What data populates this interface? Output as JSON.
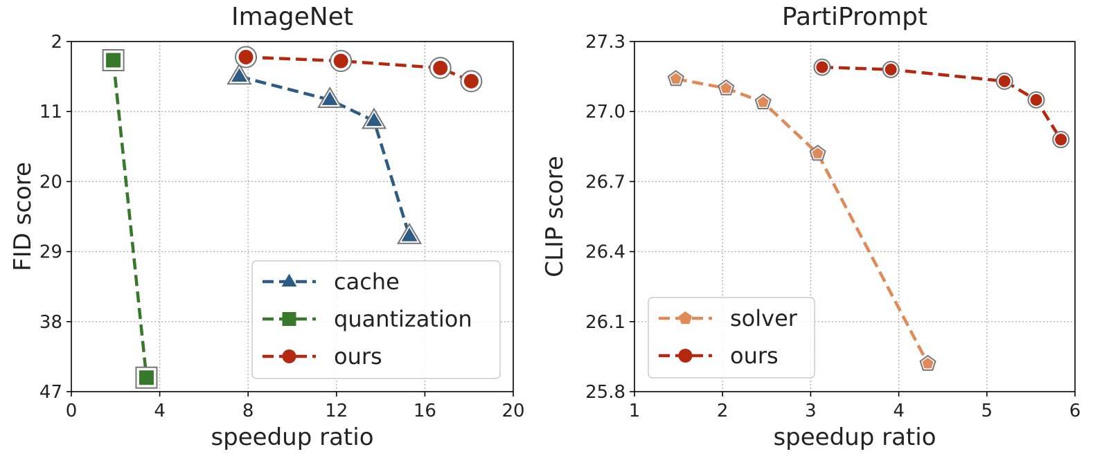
{
  "chart_data": [
    {
      "type": "line",
      "title": "ImageNet",
      "xlabel": "speedup ratio",
      "ylabel": "FID score",
      "xlim": [
        0,
        20
      ],
      "ylim": [
        47,
        2
      ],
      "y_inverted": true,
      "xticks": [
        0,
        4,
        8,
        12,
        16,
        20
      ],
      "yticks": [
        2,
        11,
        20,
        29,
        38,
        47
      ],
      "grid": true,
      "legend": "bottom-right",
      "series": [
        {
          "name": "cache",
          "color": "#2e5b84",
          "marker": "triangle",
          "x": [
            7.6,
            11.7,
            13.7,
            15.3
          ],
          "y": [
            6.5,
            9.5,
            12.2,
            27.0
          ]
        },
        {
          "name": "quantization",
          "color": "#37782b",
          "marker": "square",
          "x": [
            1.9,
            3.4
          ],
          "y": [
            4.4,
            45.2
          ]
        },
        {
          "name": "ours",
          "color": "#b3280f",
          "marker": "circle",
          "x": [
            7.9,
            12.2,
            16.7,
            18.1
          ],
          "y": [
            4.0,
            4.5,
            5.4,
            7.1
          ]
        }
      ]
    },
    {
      "type": "line",
      "title": "PartiPrompt",
      "xlabel": "speedup ratio",
      "ylabel": "CLIP score",
      "xlim": [
        1,
        6
      ],
      "ylim": [
        25.8,
        27.3
      ],
      "xticks": [
        1,
        2,
        3,
        4,
        5,
        6
      ],
      "yticks": [
        25.8,
        26.1,
        26.4,
        26.7,
        27.0,
        27.3
      ],
      "ytick_labels": [
        "25.8",
        "26.1",
        "26.4",
        "26.7",
        "27.0",
        "27.3"
      ],
      "grid": true,
      "legend": "bottom-left",
      "series": [
        {
          "name": "solver",
          "color": "#e08a5a",
          "marker": "pentagon",
          "x": [
            1.47,
            2.04,
            2.46,
            3.08,
            4.33
          ],
          "y": [
            27.14,
            27.1,
            27.04,
            26.82,
            25.92
          ]
        },
        {
          "name": "ours",
          "color": "#b3280f",
          "marker": "circle",
          "x": [
            3.13,
            3.91,
            5.2,
            5.56,
            5.84
          ],
          "y": [
            27.19,
            27.18,
            27.13,
            27.05,
            26.88
          ]
        }
      ]
    }
  ]
}
